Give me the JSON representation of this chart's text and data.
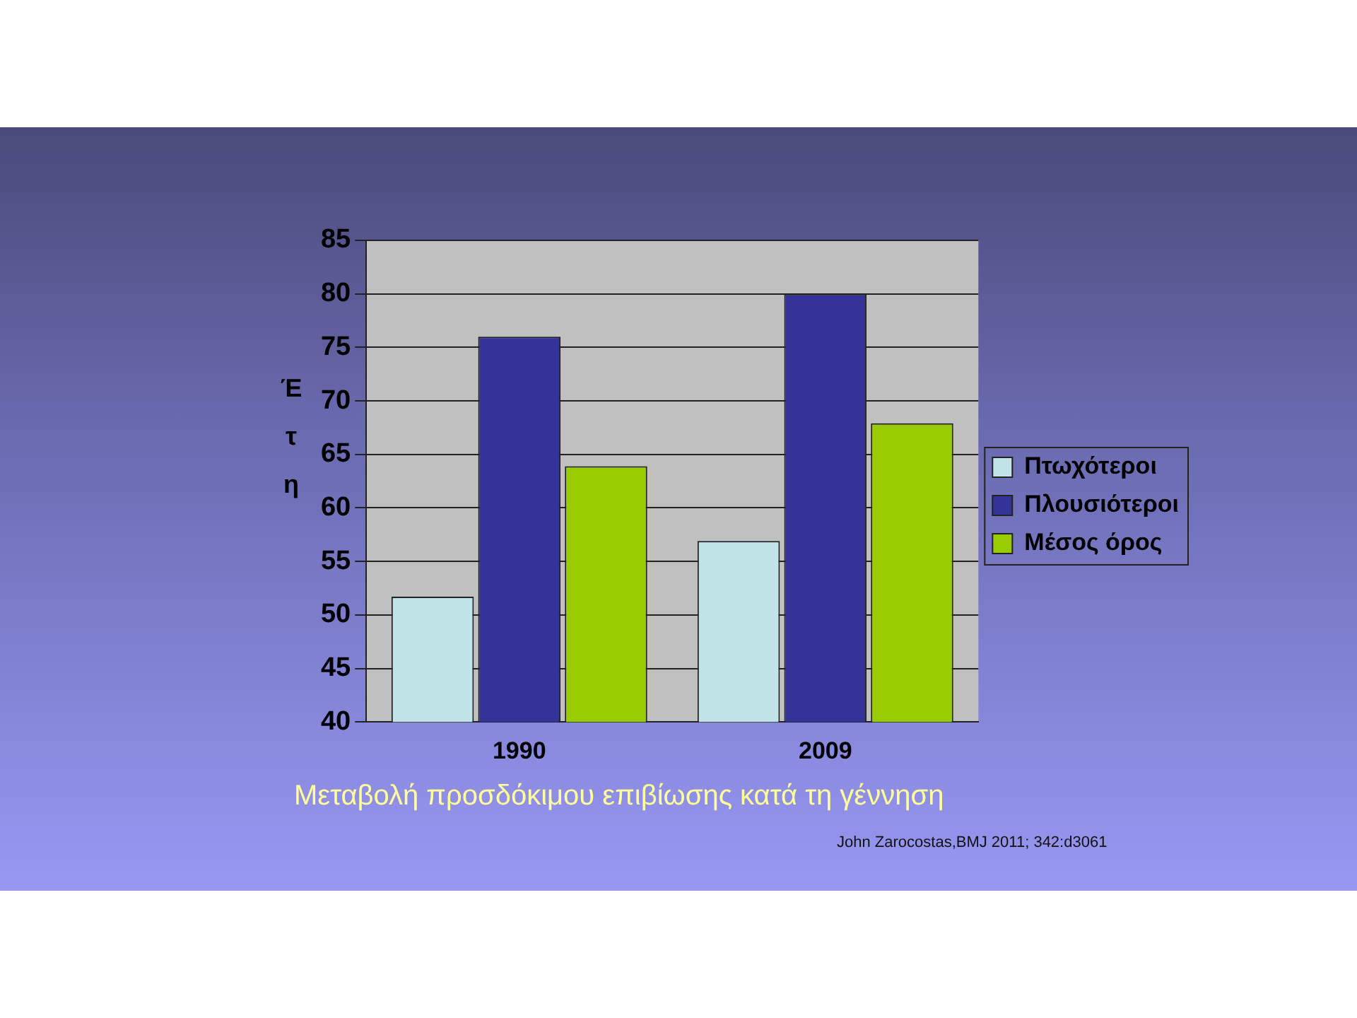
{
  "chart_data": {
    "type": "bar",
    "ylabel": "Έτη",
    "categories": [
      "1990",
      "2009"
    ],
    "series": [
      {
        "name": "Πτωχότεροι",
        "color": "#c0e4e8",
        "values": [
          51.7,
          56.9
        ]
      },
      {
        "name": "Πλουσιότεροι",
        "color": "#333399",
        "values": [
          76,
          80
        ]
      },
      {
        "name": "Μέσος όρος",
        "color": "#99cc00",
        "values": [
          63.9,
          67.9
        ]
      }
    ],
    "ylim": [
      40,
      85
    ],
    "yticks": [
      40,
      45,
      50,
      55,
      60,
      65,
      70,
      75,
      80,
      85
    ],
    "grid": "y",
    "legend": "right",
    "annotations": [
      "Μεταβολή προσδόκιμου επιβίωσης κατά τη γέννηση",
      "John Zarocostas,BMJ 2011; 342:d3061"
    ]
  }
}
